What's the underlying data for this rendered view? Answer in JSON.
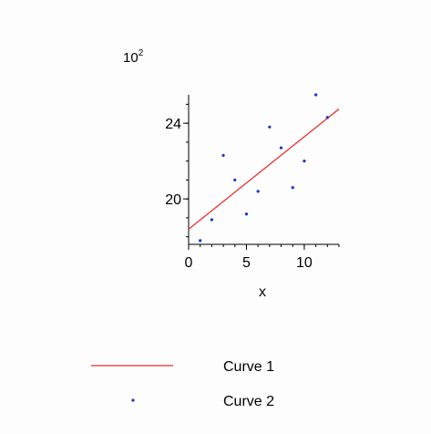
{
  "chart_data": {
    "type": "scatter",
    "title": "",
    "xlabel": "x",
    "ylabel": "",
    "y_multiplier": {
      "base": "10",
      "exponent": "2"
    },
    "xlim": [
      0,
      13
    ],
    "ylim": [
      17.6,
      25.5
    ],
    "x_ticks": [
      {
        "value": 0,
        "label": "0"
      },
      {
        "value": 5,
        "label": "5"
      },
      {
        "value": 10,
        "label": "10"
      }
    ],
    "y_ticks": [
      {
        "value": 20,
        "label": "20"
      },
      {
        "value": 24,
        "label": "24"
      }
    ],
    "grid": false,
    "legend_position": "bottom",
    "series": [
      {
        "name": "Curve 1",
        "kind": "line",
        "color": "#e8302c",
        "x": [
          0,
          13
        ],
        "y": [
          18.4,
          24.75
        ]
      },
      {
        "name": "Curve 2",
        "kind": "points",
        "color": "#1a2fd0",
        "x": [
          1,
          2,
          3,
          4,
          5,
          6,
          7,
          8,
          9,
          10,
          11,
          12
        ],
        "y": [
          17.8,
          18.9,
          22.3,
          21.0,
          19.2,
          20.4,
          23.8,
          22.7,
          20.6,
          22.0,
          25.5,
          24.3
        ]
      }
    ]
  }
}
